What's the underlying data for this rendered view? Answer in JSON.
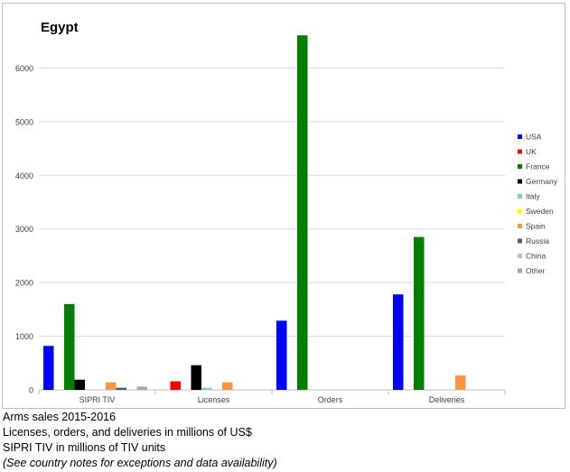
{
  "chart_data": {
    "type": "bar",
    "title": "Egypt",
    "xlabel": "",
    "ylabel": "",
    "ylim": [
      0,
      7000
    ],
    "yticks": [
      0,
      1000,
      2000,
      3000,
      4000,
      5000,
      6000
    ],
    "grid": true,
    "legend_position": "right",
    "categories": [
      "SIPRI TIV",
      "Licenses",
      "Orders",
      "Deliveries"
    ],
    "series": [
      {
        "name": "USA",
        "color": "#0000ff",
        "values": [
          820,
          0,
          1290,
          1780
        ]
      },
      {
        "name": "UK",
        "color": "#ff0000",
        "values": [
          0,
          160,
          0,
          0
        ]
      },
      {
        "name": "France",
        "color": "#008000",
        "values": [
          1600,
          0,
          6610,
          2850
        ]
      },
      {
        "name": "Germany",
        "color": "#000000",
        "values": [
          190,
          460,
          0,
          0
        ]
      },
      {
        "name": "Italy",
        "color": "#7ec8e3",
        "values": [
          0,
          40,
          0,
          0
        ]
      },
      {
        "name": "Sweden",
        "color": "#ffff00",
        "values": [
          0,
          0,
          0,
          0
        ]
      },
      {
        "name": "Spain",
        "color": "#f79646",
        "values": [
          140,
          140,
          0,
          270
        ]
      },
      {
        "name": "Russia",
        "color": "#595959",
        "values": [
          40,
          0,
          0,
          0
        ]
      },
      {
        "name": "China",
        "color": "#bfbfbf",
        "values": [
          0,
          0,
          0,
          0
        ]
      },
      {
        "name": "Other",
        "color": "#a6a6a6",
        "values": [
          60,
          0,
          0,
          0
        ]
      }
    ]
  },
  "captions": {
    "line1": "Arms sales 2015-2016",
    "line2": "Licenses, orders, and deliveries in millions of US$",
    "line3": "SIPRI TIV in millions of TIV units",
    "line4": "(See country notes for exceptions and data availability)"
  }
}
